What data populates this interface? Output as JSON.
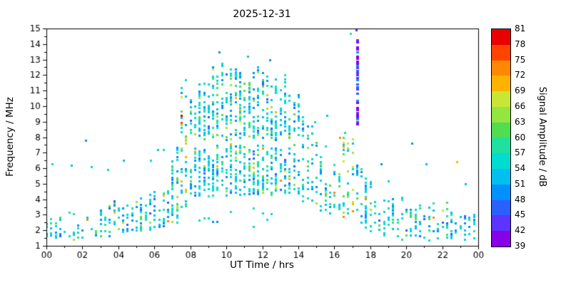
{
  "chart_data": {
    "type": "heatmap",
    "title": "2025-12-31",
    "xlabel": "UT Time / hrs",
    "ylabel": "Frequency / MHz",
    "xlim": [
      0,
      24
    ],
    "ylim": [
      1,
      15
    ],
    "grid": false,
    "x_ticks": [
      "00",
      "02",
      "04",
      "06",
      "08",
      "10",
      "12",
      "14",
      "16",
      "18",
      "20",
      "22",
      "00"
    ],
    "y_ticks": [
      "1",
      "2",
      "3",
      "4",
      "5",
      "6",
      "7",
      "8",
      "9",
      "10",
      "11",
      "12",
      "13",
      "14",
      "15"
    ],
    "colorbar": {
      "label": "Signal Amplitude / dB",
      "min": 39,
      "max": 81,
      "ticks": [
        39,
        42,
        45,
        48,
        51,
        54,
        57,
        60,
        63,
        66,
        69,
        72,
        75,
        78,
        81
      ],
      "colors": [
        "#8800e8",
        "#5c33ff",
        "#2a60ff",
        "#0090ff",
        "#00c0f0",
        "#00dcd0",
        "#20e0a0",
        "#50dd50",
        "#95e540",
        "#c9e636",
        "#ffb300",
        "#ff8800",
        "#ff4400",
        "#e80000"
      ]
    },
    "sampling": {
      "dt_hours": 0.25,
      "df_mhz": 0.15,
      "point_w": 3,
      "point_h": 3,
      "seed": 20251231
    },
    "palettes": {
      "default": [
        [
          45,
          0.05
        ],
        [
          48,
          0.16
        ],
        [
          51,
          0.22
        ],
        [
          54,
          0.3
        ],
        [
          57,
          0.13
        ],
        [
          60,
          0.06
        ],
        [
          63,
          0.04
        ],
        [
          66,
          0.02
        ],
        [
          69,
          0.012
        ],
        [
          72,
          0.008
        ]
      ],
      "active": [
        [
          48,
          0.06
        ],
        [
          51,
          0.16
        ],
        [
          54,
          0.2
        ],
        [
          57,
          0.14
        ],
        [
          60,
          0.12
        ],
        [
          63,
          0.1
        ],
        [
          66,
          0.08
        ],
        [
          69,
          0.06
        ],
        [
          72,
          0.05
        ],
        [
          75,
          0.02
        ],
        [
          78,
          0.01
        ]
      ],
      "spike": [
        [
          39,
          0.35
        ],
        [
          42,
          0.3
        ],
        [
          45,
          0.2
        ],
        [
          48,
          0.15
        ]
      ]
    },
    "bands": [
      {
        "t": [
          0,
          1
        ],
        "f": [
          1.3,
          3.6
        ],
        "d": 0.4
      },
      {
        "t": [
          1,
          2
        ],
        "f": [
          1.3,
          3.4
        ],
        "d": 0.34
      },
      {
        "t": [
          2,
          3
        ],
        "f": [
          1.4,
          3.2
        ],
        "d": 0.3
      },
      {
        "t": [
          3,
          4
        ],
        "f": [
          1.5,
          4.2
        ],
        "d": 0.38
      },
      {
        "t": [
          4,
          5
        ],
        "f": [
          1.6,
          4.5
        ],
        "d": 0.36
      },
      {
        "t": [
          5,
          6
        ],
        "f": [
          1.7,
          4.4
        ],
        "d": 0.34
      },
      {
        "t": [
          6,
          6.9
        ],
        "f": [
          2.0,
          5.0
        ],
        "d": 0.4
      },
      {
        "t": [
          6.9,
          7.4
        ],
        "f": [
          2.4,
          7.4
        ],
        "d": 0.42
      },
      {
        "t": [
          7.4,
          7.8
        ],
        "f": [
          3.4,
          12.2
        ],
        "d": 0.4,
        "pal": "active"
      },
      {
        "t": [
          7.8,
          14.2
        ],
        "f": [
          4.2,
          7.8
        ],
        "d": 0.55
      },
      {
        "t": [
          7.8,
          8.4
        ],
        "f": [
          7.8,
          11.2
        ],
        "d": 0.42
      },
      {
        "t": [
          8.4,
          9.2
        ],
        "f": [
          7.8,
          12.5
        ],
        "d": 0.45
      },
      {
        "t": [
          9.2,
          11.0
        ],
        "f": [
          7.8,
          12.9
        ],
        "d": 0.48
      },
      {
        "t": [
          11.0,
          12.5
        ],
        "f": [
          7.8,
          12.6
        ],
        "d": 0.46
      },
      {
        "t": [
          12.5,
          13.4
        ],
        "f": [
          7.8,
          12.2
        ],
        "d": 0.44
      },
      {
        "t": [
          13.4,
          14.2
        ],
        "f": [
          7.8,
          11.6
        ],
        "d": 0.4
      },
      {
        "t": [
          7.8,
          14.2
        ],
        "f": [
          2.2,
          4.2
        ],
        "d": 0.07
      },
      {
        "t": [
          14.2,
          14.9
        ],
        "f": [
          3.8,
          9.4
        ],
        "d": 0.4
      },
      {
        "t": [
          14.9,
          15.6
        ],
        "f": [
          3.2,
          8.2
        ],
        "d": 0.3
      },
      {
        "t": [
          15.6,
          16.4
        ],
        "f": [
          2.8,
          7.8
        ],
        "d": 0.22
      },
      {
        "t": [
          16.4,
          17.1
        ],
        "f": [
          2.5,
          8.6
        ],
        "d": 0.25,
        "pal": "active"
      },
      {
        "t": [
          17.1,
          17.7
        ],
        "f": [
          2.3,
          6.6
        ],
        "d": 0.28
      },
      {
        "t": [
          17.2,
          17.45
        ],
        "f": [
          8.8,
          14.6
        ],
        "d": 0.85,
        "pal": "spike",
        "w": 4,
        "jt": 0.1
      },
      {
        "t": [
          17.7,
          18.5
        ],
        "f": [
          1.8,
          6.2
        ],
        "d": 0.36
      },
      {
        "t": [
          18.5,
          19.5
        ],
        "f": [
          1.5,
          4.8
        ],
        "d": 0.38
      },
      {
        "t": [
          19.5,
          21.0
        ],
        "f": [
          1.4,
          4.2
        ],
        "d": 0.36
      },
      {
        "t": [
          21.0,
          22.5
        ],
        "f": [
          1.3,
          3.9
        ],
        "d": 0.34
      },
      {
        "t": [
          22.5,
          24.0
        ],
        "f": [
          1.3,
          3.5
        ],
        "d": 0.36
      }
    ],
    "points": [
      [
        0.3,
        6.3,
        54
      ],
      [
        1.4,
        6.2,
        51
      ],
      [
        2.2,
        7.8,
        48
      ],
      [
        2.5,
        6.1,
        54
      ],
      [
        3.4,
        5.9,
        54
      ],
      [
        4.3,
        6.5,
        51
      ],
      [
        5.8,
        6.5,
        54
      ],
      [
        6.2,
        7.2,
        51
      ],
      [
        6.5,
        7.2,
        54
      ],
      [
        9.6,
        13.5,
        48
      ],
      [
        11.2,
        13.2,
        51
      ],
      [
        12.4,
        13.0,
        48
      ],
      [
        14.9,
        9.0,
        54
      ],
      [
        15.6,
        9.4,
        51
      ],
      [
        16.3,
        8.0,
        72
      ],
      [
        16.5,
        7.4,
        69
      ],
      [
        16.6,
        8.3,
        54
      ],
      [
        16.9,
        14.7,
        57
      ],
      [
        17.2,
        14.9,
        42
      ],
      [
        18.6,
        6.3,
        48
      ],
      [
        19.0,
        5.2,
        54
      ],
      [
        20.3,
        7.6,
        48
      ],
      [
        21.1,
        6.3,
        51
      ],
      [
        22.8,
        6.4,
        69
      ],
      [
        23.3,
        5.0,
        51
      ]
    ]
  }
}
